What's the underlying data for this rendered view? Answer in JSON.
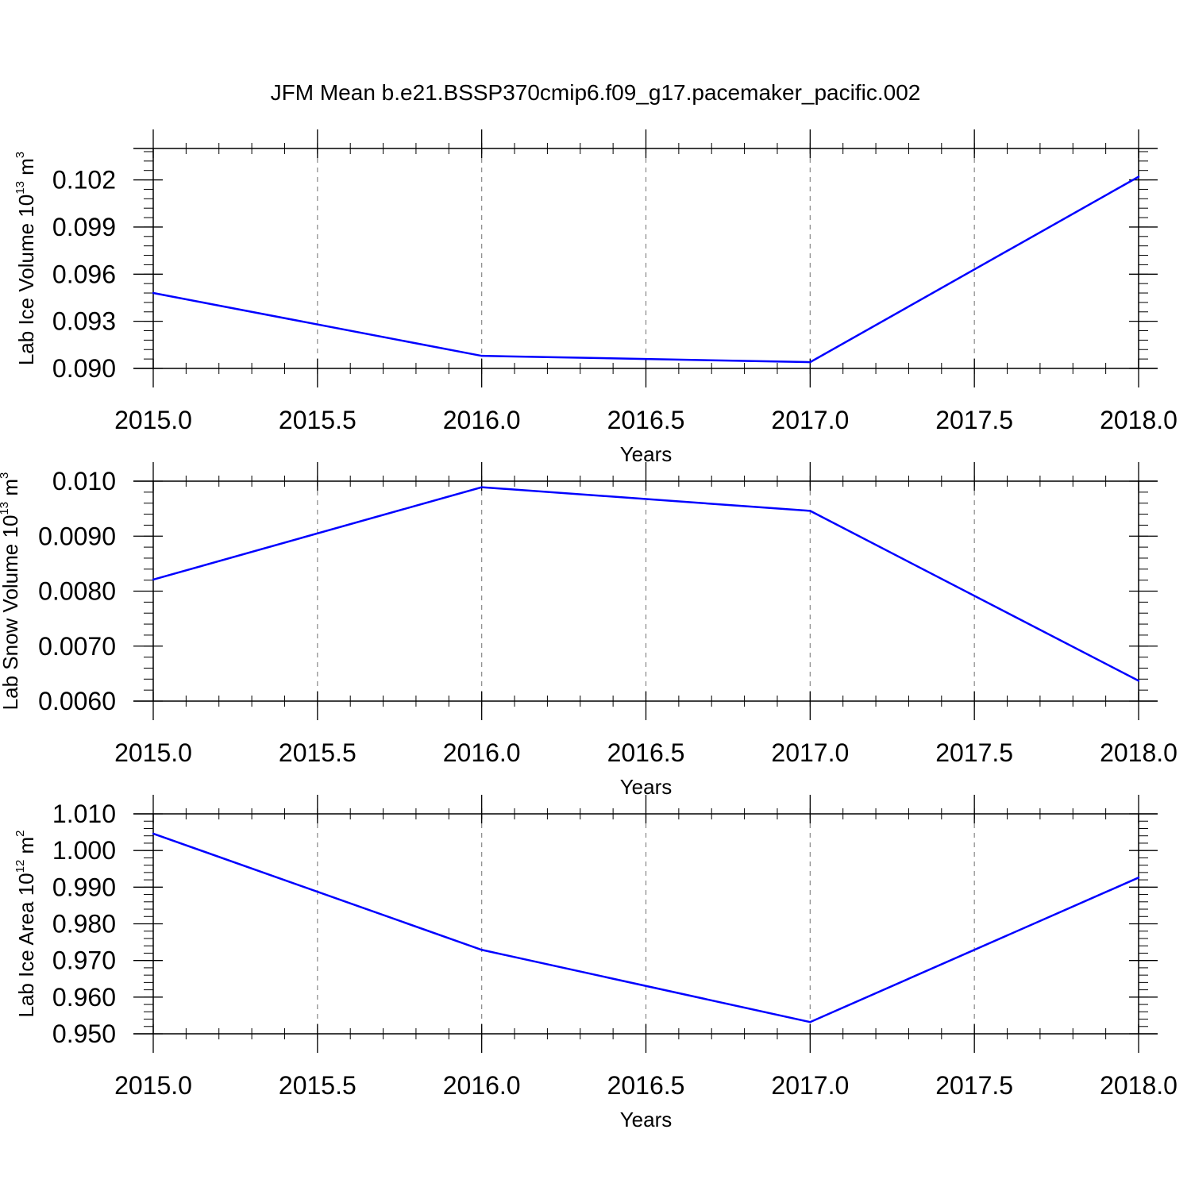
{
  "figure_title": "JFM Mean b.e21.BSSP370cmip6.f09_g17.pacemaker_pacific.002",
  "colors": {
    "line": "#0000ff",
    "axis": "#000000",
    "grid": "#888888"
  },
  "chart_data": [
    {
      "type": "line",
      "x": [
        2015.0,
        2016.0,
        2017.0,
        2018.0
      ],
      "series": [
        {
          "values": [
            0.0948,
            0.0908,
            0.0904,
            0.1022
          ]
        }
      ],
      "xlabel": "Years",
      "ylabel": {
        "text": "Lab Ice Volume 10",
        "sup1": "13",
        "unit": " m",
        "sup2": "3"
      },
      "xlim": [
        2015.0,
        2018.0
      ],
      "ylim": [
        0.09,
        0.104
      ],
      "xticks": [
        2015.0,
        2015.5,
        2016.0,
        2016.5,
        2017.0,
        2017.5,
        2018.0
      ],
      "xtick_labels": [
        "2015.0",
        "2015.5",
        "2016.0",
        "2016.5",
        "2017.0",
        "2017.5",
        "2018.0"
      ],
      "yticks": [
        0.09,
        0.093,
        0.096,
        0.099,
        0.102
      ],
      "ytick_labels": [
        "0.090",
        "0.093",
        "0.096",
        "0.099",
        "0.102"
      ],
      "yminor_step": 0.0006,
      "grid": "vertical-dashed"
    },
    {
      "type": "line",
      "x": [
        2015.0,
        2016.0,
        2017.0,
        2018.0
      ],
      "series": [
        {
          "values": [
            0.00821,
            0.00989,
            0.00946,
            0.00637
          ]
        }
      ],
      "xlabel": "Years",
      "ylabel": {
        "text": "Lab Snow Volume 10",
        "sup1": "13",
        "unit": " m",
        "sup2": "3"
      },
      "xlim": [
        2015.0,
        2018.0
      ],
      "ylim": [
        0.006,
        0.01
      ],
      "xticks": [
        2015.0,
        2015.5,
        2016.0,
        2016.5,
        2017.0,
        2017.5,
        2018.0
      ],
      "xtick_labels": [
        "2015.0",
        "2015.5",
        "2016.0",
        "2016.5",
        "2017.0",
        "2017.5",
        "2018.0"
      ],
      "yticks": [
        0.006,
        0.007,
        0.008,
        0.009,
        0.01
      ],
      "ytick_labels": [
        "0.0060",
        "0.0070",
        "0.0080",
        "0.0090",
        "0.010"
      ],
      "yminor_step": 0.0002,
      "grid": "vertical-dashed"
    },
    {
      "type": "line",
      "x": [
        2015.0,
        2016.0,
        2017.0,
        2018.0
      ],
      "series": [
        {
          "values": [
            1.0046,
            0.9729,
            0.9532,
            0.9926
          ]
        }
      ],
      "xlabel": "Years",
      "ylabel": {
        "text": "Lab Ice Area 10",
        "sup1": "12",
        "unit": " m",
        "sup2": "2"
      },
      "xlim": [
        2015.0,
        2018.0
      ],
      "ylim": [
        0.95,
        1.01
      ],
      "xticks": [
        2015.0,
        2015.5,
        2016.0,
        2016.5,
        2017.0,
        2017.5,
        2018.0
      ],
      "xtick_labels": [
        "2015.0",
        "2015.5",
        "2016.0",
        "2016.5",
        "2017.0",
        "2017.5",
        "2018.0"
      ],
      "yticks": [
        0.95,
        0.96,
        0.97,
        0.98,
        0.99,
        1.0,
        1.01
      ],
      "ytick_labels": [
        "0.950",
        "0.960",
        "0.970",
        "0.980",
        "0.990",
        "1.000",
        "1.010"
      ],
      "yminor_step": 0.002,
      "grid": "vertical-dashed"
    }
  ]
}
